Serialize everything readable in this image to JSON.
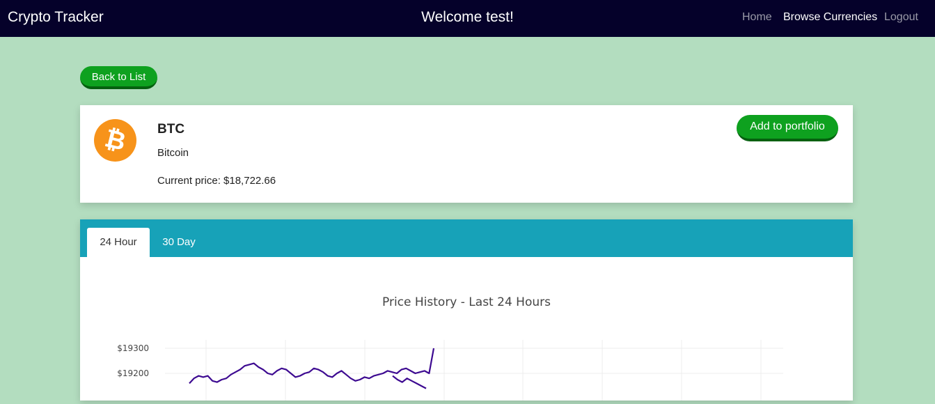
{
  "navbar": {
    "brand": "Crypto Tracker",
    "welcome": "Welcome test!",
    "links": {
      "home": "Home",
      "browse": "Browse Currencies",
      "logout": "Logout"
    }
  },
  "back_button": "Back to List",
  "coin": {
    "symbol": "BTC",
    "name": "Bitcoin",
    "price_label": "Current price: $18,722.66",
    "add_button": "Add to portfolio",
    "logo_icon": "bitcoin-icon"
  },
  "tabs": [
    "24 Hour",
    "30 Day"
  ],
  "colors": {
    "navbar": "#05012a",
    "page_background": "#b3ddbf",
    "button_green": "#0ea11f",
    "tab_bar": "#17a2b8",
    "line": "#3d0a91",
    "bitcoin_orange": "#f7931a"
  },
  "chart_data": {
    "type": "line",
    "title": "Price History - Last 24 Hours",
    "y_tick_labels": [
      "$19300",
      "$19200"
    ],
    "y_ticks": [
      19300,
      19200
    ],
    "grid": true,
    "series": [
      {
        "values": [
          19160,
          19180,
          19190,
          19185,
          19190,
          19170,
          19165,
          19175,
          19180,
          19195,
          19205,
          19215,
          19230,
          19235,
          19240,
          19225,
          19215,
          19200,
          19195,
          19210,
          19220,
          19215,
          19200,
          19185,
          19190,
          19200,
          19205,
          19220,
          19215,
          19205,
          19190,
          19185,
          19200,
          19210,
          19195,
          19180,
          19170,
          19175,
          19185,
          19180,
          19190,
          19195,
          19200,
          19210,
          19205,
          19200,
          19215,
          19220,
          19210,
          19200,
          19205,
          19210,
          19200,
          19300,
          null,
          null,
          null,
          null,
          null,
          null,
          19190,
          19175,
          19165,
          19180,
          19170,
          19160,
          19150,
          19140
        ]
      }
    ]
  }
}
